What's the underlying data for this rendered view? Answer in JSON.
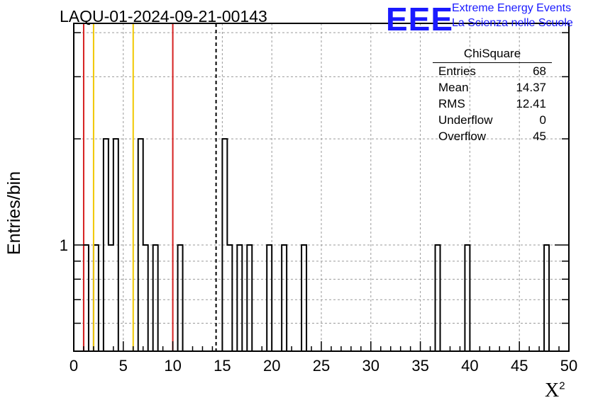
{
  "title": "LAQU-01-2024-09-21-00143",
  "logo": {
    "mark": "EEE",
    "line1": "Extreme Energy Events",
    "line2": "La Scienza nelle Scuole"
  },
  "stats_box": {
    "title": "ChiSquare",
    "rows": [
      {
        "label": "Entries",
        "value": "68"
      },
      {
        "label": "Mean",
        "value": "14.37"
      },
      {
        "label": "RMS",
        "value": "12.41"
      },
      {
        "label": "Underflow",
        "value": "0"
      },
      {
        "label": "Overflow",
        "value": "45"
      }
    ]
  },
  "colors": {
    "red_line": "#d62020",
    "yellow_line": "#f0c800",
    "dashed_line": "#000000",
    "logo": "#1a1aff"
  },
  "chart_data": {
    "type": "histogram",
    "title": "LAQU-01-2024-09-21-00143",
    "xlabel": "X",
    "xlabel_superscript": "2",
    "ylabel": "Entries/bin",
    "xlim": [
      0,
      50
    ],
    "ylog": true,
    "ylim": [
      0.5,
      4.25
    ],
    "grid": true,
    "bin_width": 0.5,
    "xticks": [
      0,
      5,
      10,
      15,
      20,
      25,
      30,
      35,
      40,
      45,
      50
    ],
    "yticks_labeled": [
      1
    ],
    "bins": [
      {
        "x": 1.0,
        "y": 1
      },
      {
        "x": 2.0,
        "y": 1
      },
      {
        "x": 3.0,
        "y": 2
      },
      {
        "x": 3.5,
        "y": 1
      },
      {
        "x": 4.0,
        "y": 2
      },
      {
        "x": 6.5,
        "y": 2
      },
      {
        "x": 7.0,
        "y": 1
      },
      {
        "x": 8.0,
        "y": 1
      },
      {
        "x": 10.5,
        "y": 1
      },
      {
        "x": 15.0,
        "y": 2
      },
      {
        "x": 15.5,
        "y": 1
      },
      {
        "x": 16.5,
        "y": 1
      },
      {
        "x": 17.5,
        "y": 1
      },
      {
        "x": 19.5,
        "y": 1
      },
      {
        "x": 21.0,
        "y": 1
      },
      {
        "x": 23.0,
        "y": 1
      },
      {
        "x": 36.5,
        "y": 1
      },
      {
        "x": 39.5,
        "y": 1
      },
      {
        "x": 47.5,
        "y": 1
      }
    ],
    "vertical_lines": [
      {
        "x": 1.0,
        "color": "red",
        "style": "solid"
      },
      {
        "x": 2.0,
        "color": "yellow",
        "style": "solid"
      },
      {
        "x": 6.0,
        "color": "yellow",
        "style": "solid"
      },
      {
        "x": 10.0,
        "color": "red",
        "style": "solid"
      },
      {
        "x": 14.37,
        "color": "black",
        "style": "dashed"
      }
    ]
  }
}
